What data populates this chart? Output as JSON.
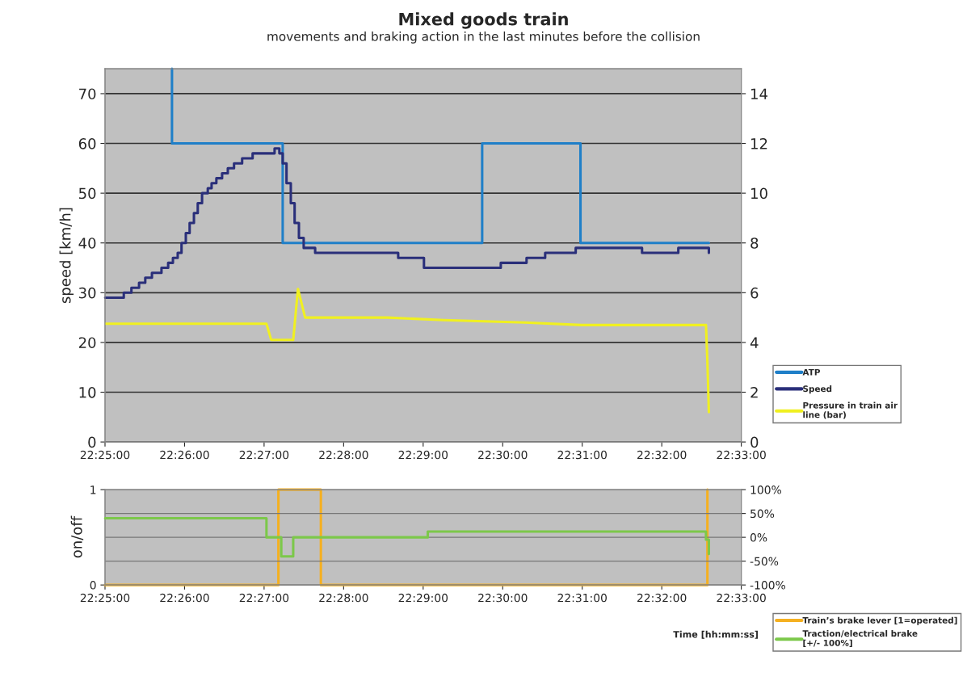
{
  "chart_data": [
    {
      "type": "step",
      "title": "Mixed goods train",
      "subtitle": "movements and braking action in the last minutes before the collision",
      "ylabel": "speed [km/h]",
      "xlim": [
        22.416667,
        22.55
      ],
      "xticks": [
        {
          "value": 22.416667,
          "label": "22:25:00"
        },
        {
          "value": 22.433333,
          "label": "22:26:00"
        },
        {
          "value": 22.45,
          "label": "22:27:00"
        },
        {
          "value": 22.466667,
          "label": "22:28:00"
        },
        {
          "value": 22.483333,
          "label": "22:29:00"
        },
        {
          "value": 22.5,
          "label": "22:30:00"
        },
        {
          "value": 22.516667,
          "label": "22:31:00"
        },
        {
          "value": 22.533333,
          "label": "22:32:00"
        },
        {
          "value": 22.55,
          "label": "22:33:00"
        }
      ],
      "ylim": [
        0,
        75
      ],
      "yticks": [
        0,
        10,
        20,
        30,
        40,
        50,
        60,
        70
      ],
      "y2lim": [
        0,
        15
      ],
      "y2ticks": [
        0,
        2,
        4,
        6,
        8,
        10,
        12,
        14
      ],
      "grid": "y",
      "legend": "right",
      "series": [
        {
          "name": "ATP",
          "color": "#1f7fc8",
          "x": [
            22.4307,
            22.4307,
            22.4539,
            22.4957,
            22.5163,
            22.5432
          ],
          "values": [
            75,
            60,
            40,
            60,
            40,
            40
          ]
        },
        {
          "name": "Speed",
          "color": "#2a2f7a",
          "x": [
            22.4167,
            22.4206,
            22.4222,
            22.4238,
            22.4251,
            22.4265,
            22.4285,
            22.4299,
            22.4309,
            22.4319,
            22.4327,
            22.4336,
            22.4344,
            22.4353,
            22.4361,
            22.437,
            22.4382,
            22.439,
            22.44,
            22.4412,
            22.4424,
            22.4437,
            22.4454,
            22.4476,
            22.4522,
            22.4532,
            22.4539,
            22.4547,
            22.4556,
            22.4564,
            22.4573,
            22.4583,
            22.4607,
            22.4781,
            22.4835,
            22.4996,
            22.505,
            22.5089,
            22.5153,
            22.5292,
            22.5368,
            22.5432
          ],
          "values": [
            29,
            30,
            31,
            32,
            33,
            34,
            35,
            36,
            37,
            38,
            40,
            42,
            44,
            46,
            48,
            50,
            51,
            52,
            53,
            54,
            55,
            56,
            57,
            58,
            59,
            58,
            56,
            52,
            48,
            44,
            41,
            39,
            38,
            37,
            35,
            36,
            37,
            38,
            39,
            38,
            39,
            38
          ]
        },
        {
          "name": "Pressure in train air\nline (bar)",
          "color": "#f0f020",
          "type": "line",
          "axis": "y2",
          "x": [
            22.4167,
            22.4505,
            22.4515,
            22.4561,
            22.4571,
            22.4586,
            22.4759,
            22.4877,
            22.5047,
            22.5165,
            22.5426,
            22.5429,
            22.5432
          ],
          "values": [
            4.75,
            4.75,
            4.1,
            4.1,
            6.15,
            5.0,
            5.0,
            4.9,
            4.8,
            4.7,
            4.7,
            3.2,
            1.2
          ]
        }
      ]
    },
    {
      "type": "step",
      "xlabel": "Time [hh:mm:ss]",
      "ylabel": "on/off",
      "xlim": [
        22.416667,
        22.55
      ],
      "xticks": [
        {
          "value": 22.416667,
          "label": "22:25:00"
        },
        {
          "value": 22.433333,
          "label": "22:26:00"
        },
        {
          "value": 22.45,
          "label": "22:27:00"
        },
        {
          "value": 22.466667,
          "label": "22:28:00"
        },
        {
          "value": 22.483333,
          "label": "22:29:00"
        },
        {
          "value": 22.5,
          "label": "22:30:00"
        },
        {
          "value": 22.516667,
          "label": "22:31:00"
        },
        {
          "value": 22.533333,
          "label": "22:32:00"
        },
        {
          "value": 22.55,
          "label": "22:33:00"
        }
      ],
      "ylim": [
        0,
        1
      ],
      "yticks": [
        0,
        1
      ],
      "y2lim": [
        -100,
        100
      ],
      "y2ticks": [
        {
          "value": 100,
          "label": "100%"
        },
        {
          "value": 50,
          "label": "50%"
        },
        {
          "value": 0,
          "label": "0%"
        },
        {
          "value": -50,
          "label": "-50%"
        },
        {
          "value": -100,
          "label": "-100%"
        }
      ],
      "grid": "y2",
      "legend": "bottom right",
      "series": [
        {
          "name": "Train’s brake lever [1=operated]",
          "color": "#f5b020",
          "x": [
            22.4167,
            22.453,
            22.4619,
            22.5429
          ],
          "values": [
            0,
            1,
            0,
            1
          ]
        },
        {
          "name": "Traction/electrical brake\n[+/- 100%]",
          "color": "#7cc84a",
          "axis": "y2",
          "x": [
            22.4167,
            22.4505,
            22.4536,
            22.4561,
            22.4843,
            22.5426,
            22.5432
          ],
          "values": [
            40,
            0,
            -40,
            0,
            12,
            -5,
            -35
          ]
        }
      ]
    }
  ]
}
